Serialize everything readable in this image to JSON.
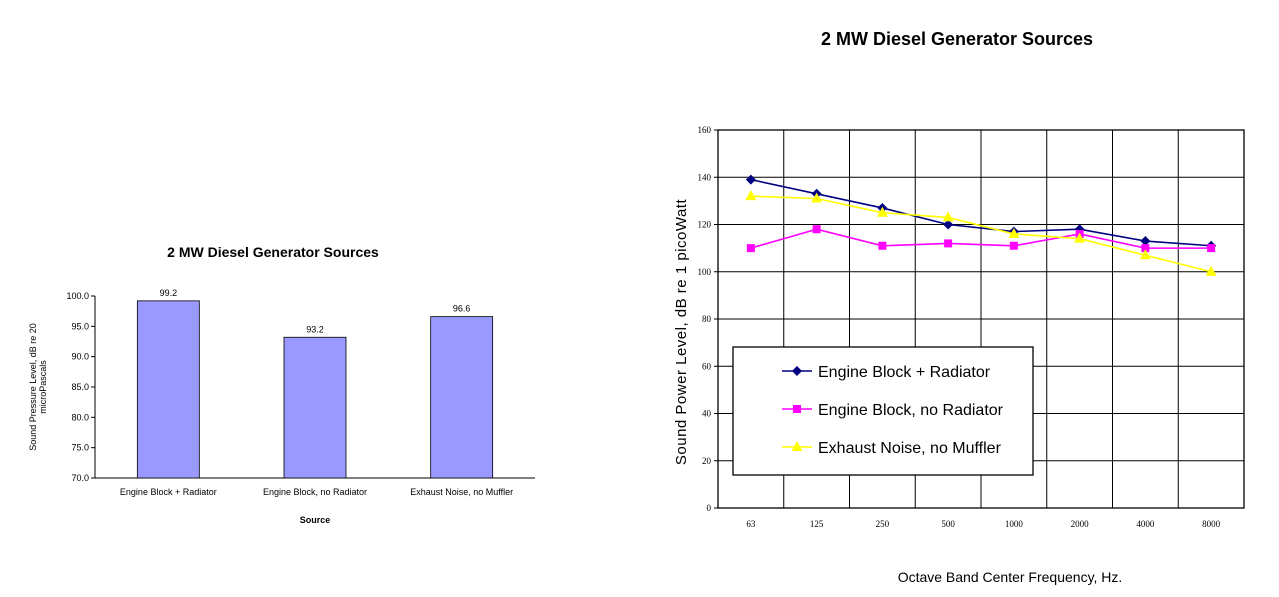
{
  "colors": {
    "bar_fill": "#9999ff",
    "series_engine_radiator": "#000080",
    "series_engine_no_radiator": "#ff00ff",
    "series_exhaust": "#ffff00"
  },
  "chart_data": [
    {
      "type": "bar",
      "title": "2 MW Diesel Generator Sources",
      "xlabel": "Source",
      "ylabel": "Sound Pressure Level, dB re 20 microPascals",
      "categories": [
        "Engine Block + Radiator",
        "Engine Block, no Radiator",
        "Exhaust Noise, no Muffler"
      ],
      "values": [
        99.2,
        93.2,
        96.6
      ],
      "value_labels": [
        "99.2",
        "93.2",
        "96.6"
      ],
      "ylim": [
        70,
        100
      ],
      "yticks": [
        "70.0",
        "75.0",
        "80.0",
        "85.0",
        "90.0",
        "95.0",
        "100.0"
      ],
      "grid": false,
      "legend": "none"
    },
    {
      "type": "line",
      "title": "2 MW Diesel Generator Sources",
      "xlabel": "Octave Band Center Frequency, Hz.",
      "ylabel": "Sound Power Level, dB re 1 picoWatt",
      "categories": [
        "63",
        "125",
        "250",
        "500",
        "1000",
        "2000",
        "4000",
        "8000"
      ],
      "ylim": [
        0,
        160
      ],
      "yticks": [
        "0",
        "20",
        "40",
        "60",
        "80",
        "100",
        "120",
        "140",
        "160"
      ],
      "grid": true,
      "legend": "bottom-left",
      "series": [
        {
          "name": "Engine Block + Radiator",
          "color": "#000080",
          "marker": "diamond",
          "values": [
            139,
            133,
            127,
            120,
            117,
            118,
            113,
            111
          ]
        },
        {
          "name": "Engine Block, no Radiator",
          "color": "#ff00ff",
          "marker": "square",
          "values": [
            110,
            118,
            111,
            112,
            111,
            116,
            110,
            110
          ]
        },
        {
          "name": "Exhaust Noise, no Muffler",
          "color": "#ffff00",
          "marker": "triangle",
          "values": [
            132,
            131,
            125,
            123,
            116,
            114,
            107,
            100
          ]
        }
      ]
    }
  ]
}
